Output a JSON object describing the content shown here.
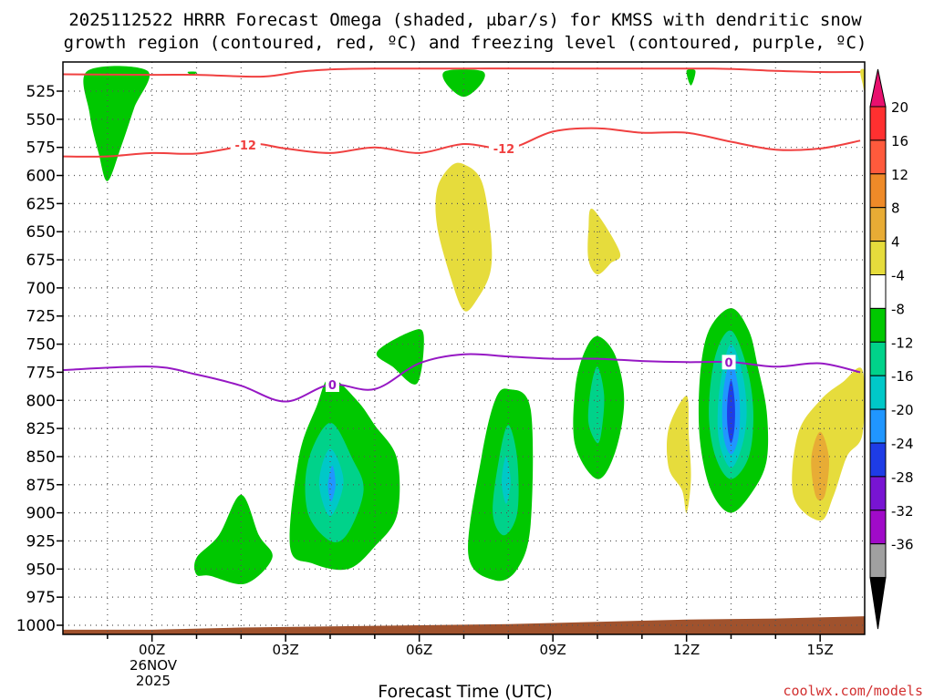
{
  "chart_data": {
    "type": "heatmap",
    "title": "2025112522 HRRR Forecast Omega (shaded, μbar/s) for KMSS with dendritic snow",
    "subtitle": "growth region (contoured, red, ºC) and freezing level (contoured, purple, ºC)",
    "xlabel": "Forecast Time (UTC)",
    "ylabel": "",
    "xlim": [
      -2,
      16
    ],
    "ylim": [
      1005,
      505
    ],
    "y_ticks": [
      525,
      550,
      575,
      600,
      625,
      650,
      675,
      700,
      725,
      750,
      775,
      800,
      825,
      850,
      875,
      900,
      925,
      950,
      975,
      1000
    ],
    "x_ticks": [
      {
        "x": 0,
        "label": "00Z"
      },
      {
        "x": 3,
        "label": "03Z"
      },
      {
        "x": 6,
        "label": "06Z"
      },
      {
        "x": 9,
        "label": "09Z"
      },
      {
        "x": 12,
        "label": "12Z"
      },
      {
        "x": 15,
        "label": "15Z"
      }
    ],
    "date_label": [
      "26NOV",
      "2025"
    ],
    "credit": "coolwx.com/models",
    "colorbar": {
      "ticks": [
        "20",
        "16",
        "12",
        "8",
        "4",
        "-4",
        "-8",
        "-12",
        "-16",
        "-20",
        "-24",
        "-28",
        "-32",
        "-36"
      ],
      "colors": [
        "#ff3030",
        "#ff5a3c",
        "#ee8a28",
        "#e8ac35",
        "#e6dc3c",
        "#ffffff",
        "#00c800",
        "#00d28a",
        "#00c8c8",
        "#2096ff",
        "#1e3ce6",
        "#7814d2",
        "#a00ac8",
        "#a0a0a0"
      ],
      "top_color": "#e8106e",
      "bottom_color": "#000000"
    },
    "contours": [
      {
        "name": "dgz-upper-boundary",
        "label": "",
        "color": "#f04040",
        "points": [
          [
            -2,
            510
          ],
          [
            0,
            510.5
          ],
          [
            1,
            510.5
          ],
          [
            2.5,
            512
          ],
          [
            3.5,
            507
          ],
          [
            5,
            505
          ],
          [
            10,
            505
          ],
          [
            12.6,
            505
          ],
          [
            14,
            507
          ],
          [
            15,
            508
          ],
          [
            15.9,
            508
          ]
        ]
      },
      {
        "name": "minus12-isotherm",
        "label": "-12",
        "color": "#f04040",
        "points": [
          [
            -2,
            583
          ],
          [
            -1,
            583
          ],
          [
            0,
            580
          ],
          [
            1,
            580.5
          ],
          [
            2,
            574
          ],
          [
            2.4,
            572
          ],
          [
            3,
            576
          ],
          [
            4,
            580
          ],
          [
            5,
            575
          ],
          [
            6,
            580
          ],
          [
            7,
            572
          ],
          [
            8,
            576
          ],
          [
            9,
            561
          ],
          [
            10,
            558
          ],
          [
            11,
            562
          ],
          [
            12,
            562
          ],
          [
            13,
            570
          ],
          [
            14,
            577
          ],
          [
            15,
            576
          ],
          [
            15.9,
            569
          ]
        ]
      },
      {
        "name": "freezing-level",
        "label": "0",
        "color": "#9618c4",
        "points": [
          [
            -2,
            773
          ],
          [
            0,
            770
          ],
          [
            1,
            777
          ],
          [
            2,
            787
          ],
          [
            3,
            801
          ],
          [
            4,
            786
          ],
          [
            5,
            790
          ],
          [
            6,
            767
          ],
          [
            7,
            759
          ],
          [
            8,
            761
          ],
          [
            9,
            763
          ],
          [
            10,
            763
          ],
          [
            11,
            765
          ],
          [
            12,
            766
          ],
          [
            13,
            766
          ],
          [
            14,
            770
          ],
          [
            15,
            767
          ],
          [
            15.9,
            775
          ]
        ]
      }
    ],
    "contour_labels": [
      {
        "contour": "minus12-isotherm",
        "x": 2.1,
        "y": 573,
        "text": "-12"
      },
      {
        "contour": "minus12-isotherm",
        "x": 7.9,
        "y": 576,
        "text": "-12"
      },
      {
        "contour": "freezing-level",
        "x": 4.05,
        "y": 786,
        "text": "0"
      },
      {
        "contour": "freezing-level",
        "x": 12.95,
        "y": 766,
        "text": "0"
      }
    ],
    "shaded_regions": [
      {
        "name": "omega-minus4-plume",
        "level": -4,
        "color": "#00c800",
        "points": [
          [
            -1.45,
            507
          ],
          [
            -0.1,
            507
          ],
          [
            -0.4,
            540
          ],
          [
            -0.7,
            575
          ],
          [
            -1.0,
            605
          ],
          [
            -1.2,
            580
          ],
          [
            -1.4,
            545
          ]
        ]
      },
      {
        "name": "omega-minus4-top-sliver",
        "level": -4,
        "color": "#00c800",
        "points": [
          [
            0.8,
            508
          ],
          [
            1.0,
            508
          ],
          [
            0.9,
            511
          ]
        ]
      },
      {
        "name": "omega-minus4-top-cap",
        "level": -4,
        "color": "#00c800",
        "points": [
          [
            6.6,
            507
          ],
          [
            7.4,
            507
          ],
          [
            7.4,
            518
          ],
          [
            7.0,
            530
          ],
          [
            6.6,
            518
          ]
        ]
      },
      {
        "name": "omega-minus4-top-sliver-12z",
        "level": -4,
        "color": "#00c800",
        "points": [
          [
            12.0,
            507
          ],
          [
            12.2,
            507
          ],
          [
            12.1,
            520
          ]
        ]
      },
      {
        "name": "omega-plus4-midlevel",
        "level": 4,
        "color": "#e6dc3c",
        "points": [
          [
            7.0,
            590
          ],
          [
            7.4,
            605
          ],
          [
            7.6,
            650
          ],
          [
            7.6,
            685
          ],
          [
            7.3,
            710
          ],
          [
            7.0,
            720
          ],
          [
            6.7,
            690
          ],
          [
            6.4,
            645
          ],
          [
            6.4,
            612
          ],
          [
            6.7,
            592
          ]
        ]
      },
      {
        "name": "omega-plus4-small",
        "level": 4,
        "color": "#e6dc3c",
        "points": [
          [
            9.9,
            630
          ],
          [
            10.5,
            668
          ],
          [
            10.3,
            678
          ],
          [
            10.0,
            688
          ],
          [
            9.8,
            675
          ],
          [
            9.8,
            648
          ]
        ]
      },
      {
        "name": "omega-minus4-cell-0530",
        "level": -4,
        "color": "#00c800",
        "points": [
          [
            5.05,
            757
          ],
          [
            5.8,
            739
          ],
          [
            6.1,
            742
          ],
          [
            5.95,
            785
          ],
          [
            5.4,
            770
          ]
        ]
      },
      {
        "name": "omega-minus4-cell-02z",
        "level": -4,
        "color": "#00c800",
        "points": [
          [
            1.0,
            940
          ],
          [
            1.5,
            920
          ],
          [
            2.0,
            884
          ],
          [
            2.4,
            920
          ],
          [
            2.7,
            940
          ],
          [
            2.1,
            963
          ],
          [
            1.3,
            956
          ],
          [
            1.0,
            955
          ]
        ]
      },
      {
        "name": "omega-minus4-cell-04z",
        "level": -4,
        "color": "#00c800",
        "points": [
          [
            4.0,
            780
          ],
          [
            4.6,
            800
          ],
          [
            5.0,
            822
          ],
          [
            5.5,
            852
          ],
          [
            5.5,
            902
          ],
          [
            5.0,
            930
          ],
          [
            4.4,
            950
          ],
          [
            3.6,
            945
          ],
          [
            3.1,
            930
          ],
          [
            3.3,
            850
          ],
          [
            3.7,
            805
          ]
        ]
      },
      {
        "name": "omega-minus8-cell-04z",
        "level": -8,
        "color": "#00d28a",
        "points": [
          [
            4.0,
            820
          ],
          [
            4.5,
            852
          ],
          [
            4.75,
            880
          ],
          [
            4.4,
            918
          ],
          [
            4.0,
            925
          ],
          [
            3.5,
            900
          ],
          [
            3.5,
            855
          ]
        ]
      },
      {
        "name": "omega-minus12-cell-04z",
        "level": -12,
        "color": "#00c8c8",
        "points": [
          [
            4.0,
            843
          ],
          [
            4.3,
            872
          ],
          [
            4.0,
            903
          ],
          [
            3.75,
            873
          ]
        ]
      },
      {
        "name": "omega-minus16-cell-04z",
        "level": -16,
        "color": "#2096ff",
        "points": [
          [
            4.05,
            858
          ],
          [
            4.12,
            875
          ],
          [
            4.02,
            890
          ],
          [
            3.95,
            875
          ]
        ]
      },
      {
        "name": "omega-minus4-cell-08z",
        "level": -4,
        "color": "#00c800",
        "points": [
          [
            8.0,
            790
          ],
          [
            8.5,
            808
          ],
          [
            8.5,
            910
          ],
          [
            8.2,
            950
          ],
          [
            7.7,
            960
          ],
          [
            7.1,
            937
          ],
          [
            7.4,
            850
          ],
          [
            7.7,
            800
          ]
        ]
      },
      {
        "name": "omega-minus8-cell-08z",
        "level": -8,
        "color": "#00d28a",
        "points": [
          [
            8.0,
            822
          ],
          [
            8.2,
            852
          ],
          [
            8.2,
            900
          ],
          [
            7.9,
            920
          ],
          [
            7.65,
            900
          ],
          [
            7.8,
            850
          ]
        ]
      },
      {
        "name": "omega-minus12-cell-08z",
        "level": -12,
        "color": "#00c8c8",
        "points": [
          [
            7.95,
            850
          ],
          [
            8.05,
            872
          ],
          [
            7.95,
            892
          ],
          [
            7.85,
            872
          ]
        ]
      },
      {
        "name": "omega-minus4-cell-10z",
        "level": -4,
        "color": "#00c800",
        "points": [
          [
            10.0,
            743
          ],
          [
            10.4,
            760
          ],
          [
            10.6,
            800
          ],
          [
            10.4,
            846
          ],
          [
            10.0,
            870
          ],
          [
            9.5,
            840
          ],
          [
            9.5,
            790
          ],
          [
            9.7,
            758
          ]
        ]
      },
      {
        "name": "omega-minus8-cell-10z",
        "level": -8,
        "color": "#00d28a",
        "points": [
          [
            10.0,
            770
          ],
          [
            10.15,
            795
          ],
          [
            10.1,
            825
          ],
          [
            10.0,
            838
          ],
          [
            9.8,
            820
          ],
          [
            9.85,
            790
          ]
        ]
      },
      {
        "name": "omega-plus4-12z",
        "level": 4,
        "color": "#e6dc3c",
        "points": [
          [
            12.0,
            796
          ],
          [
            11.6,
            825
          ],
          [
            11.6,
            860
          ],
          [
            11.9,
            880
          ],
          [
            12.0,
            900
          ],
          [
            12.1,
            870
          ],
          [
            12.05,
            830
          ]
        ]
      },
      {
        "name": "omega-minus4-cell-13z",
        "level": -4,
        "color": "#00c800",
        "points": [
          [
            13.0,
            718
          ],
          [
            13.4,
            738
          ],
          [
            13.6,
            770
          ],
          [
            13.8,
            810
          ],
          [
            13.8,
            853
          ],
          [
            13.5,
            880
          ],
          [
            13.0,
            900
          ],
          [
            12.55,
            880
          ],
          [
            12.3,
            835
          ],
          [
            12.3,
            780
          ],
          [
            12.5,
            738
          ]
        ]
      },
      {
        "name": "omega-minus8-cell-13z",
        "level": -8,
        "color": "#00d28a",
        "points": [
          [
            13.0,
            738
          ],
          [
            13.35,
            770
          ],
          [
            13.5,
            810
          ],
          [
            13.4,
            850
          ],
          [
            13.0,
            870
          ],
          [
            12.65,
            850
          ],
          [
            12.5,
            810
          ],
          [
            12.65,
            760
          ]
        ]
      },
      {
        "name": "omega-minus12-cell-13z",
        "level": -12,
        "color": "#00c8c8",
        "points": [
          [
            13.0,
            750
          ],
          [
            13.25,
            775
          ],
          [
            13.35,
            810
          ],
          [
            13.25,
            840
          ],
          [
            13.0,
            860
          ],
          [
            12.75,
            840
          ],
          [
            12.7,
            810
          ],
          [
            12.8,
            775
          ]
        ]
      },
      {
        "name": "omega-minus16-cell-13z",
        "level": -16,
        "color": "#2096ff",
        "points": [
          [
            13.0,
            765
          ],
          [
            13.15,
            785
          ],
          [
            13.2,
            812
          ],
          [
            13.15,
            836
          ],
          [
            13.0,
            848
          ],
          [
            12.85,
            836
          ],
          [
            12.8,
            812
          ],
          [
            12.85,
            785
          ]
        ]
      },
      {
        "name": "omega-minus20-cell-13z",
        "level": -20,
        "color": "#1e3ce6",
        "points": [
          [
            13.0,
            782
          ],
          [
            13.08,
            800
          ],
          [
            13.08,
            823
          ],
          [
            13.0,
            838
          ],
          [
            12.92,
            823
          ],
          [
            12.92,
            800
          ]
        ]
      },
      {
        "name": "omega-plus4-15z",
        "level": 4,
        "color": "#e6dc3c",
        "points": [
          [
            15.95,
            773
          ],
          [
            15.95,
            830
          ],
          [
            15.6,
            850
          ],
          [
            15.3,
            885
          ],
          [
            15.0,
            907
          ],
          [
            14.4,
            885
          ],
          [
            14.5,
            830
          ],
          [
            15.0,
            800
          ],
          [
            15.5,
            784
          ]
        ]
      },
      {
        "name": "omega-plus8-15z",
        "level": 8,
        "color": "#e8ac35",
        "points": [
          [
            15.0,
            828
          ],
          [
            15.2,
            852
          ],
          [
            15.1,
            885
          ],
          [
            14.9,
            885
          ],
          [
            14.8,
            852
          ]
        ]
      },
      {
        "name": "omega-plus4-top-right",
        "level": 4,
        "color": "#e6dc3c",
        "points": [
          [
            15.9,
            507
          ],
          [
            16.0,
            507
          ],
          [
            16.0,
            525
          ],
          [
            15.95,
            518
          ]
        ]
      }
    ],
    "terrain": {
      "color": "#a0522d",
      "points": [
        [
          -2,
          1004
        ],
        [
          0,
          1004
        ],
        [
          2,
          1002
        ],
        [
          4,
          1001
        ],
        [
          6,
          1000
        ],
        [
          8,
          999
        ],
        [
          10,
          997
        ],
        [
          12,
          995
        ],
        [
          14,
          994
        ],
        [
          16,
          992
        ]
      ]
    }
  }
}
